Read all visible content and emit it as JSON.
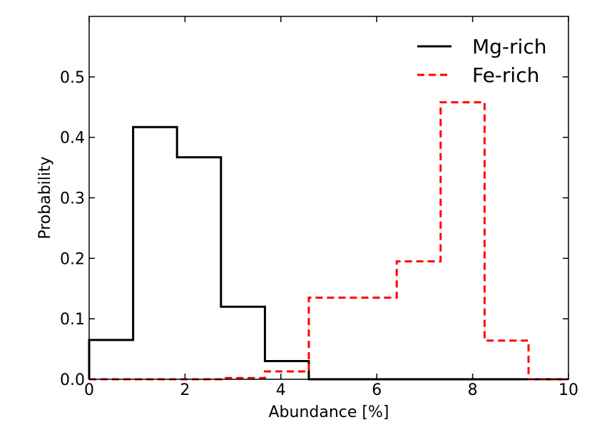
{
  "chart_data": {
    "type": "histogram-step",
    "xlabel": "Abundance [%]",
    "ylabel": "Probability",
    "xlim": [
      0,
      10
    ],
    "ylim": [
      0,
      0.6
    ],
    "x_ticks": [
      0,
      2,
      4,
      6,
      8,
      10
    ],
    "x_tick_labels": [
      "0",
      "2",
      "4",
      "6",
      "8",
      "10"
    ],
    "y_ticks": [
      0.0,
      0.1,
      0.2,
      0.3,
      0.4,
      0.5
    ],
    "y_tick_labels": [
      "0.0",
      "0.1",
      "0.2",
      "0.3",
      "0.4",
      "0.5"
    ],
    "bin_edges": [
      0,
      0.917,
      1.833,
      2.75,
      3.667,
      4.583,
      5.5,
      6.417,
      7.333,
      8.25,
      9.167,
      10
    ],
    "legend_position": "top-right",
    "series": [
      {
        "name": "Mg-rich",
        "color": "#000000",
        "linestyle": "solid",
        "values": [
          0.065,
          0.417,
          0.367,
          0.12,
          0.03,
          0.0,
          0.0,
          0.0,
          0.0,
          0.0,
          0.0
        ]
      },
      {
        "name": "Fe-rich",
        "color": "#ff0000",
        "linestyle": "dashed",
        "values": [
          0.0,
          0.0,
          0.0,
          0.002,
          0.013,
          0.135,
          0.135,
          0.195,
          0.458,
          0.064,
          0.0
        ]
      }
    ]
  }
}
